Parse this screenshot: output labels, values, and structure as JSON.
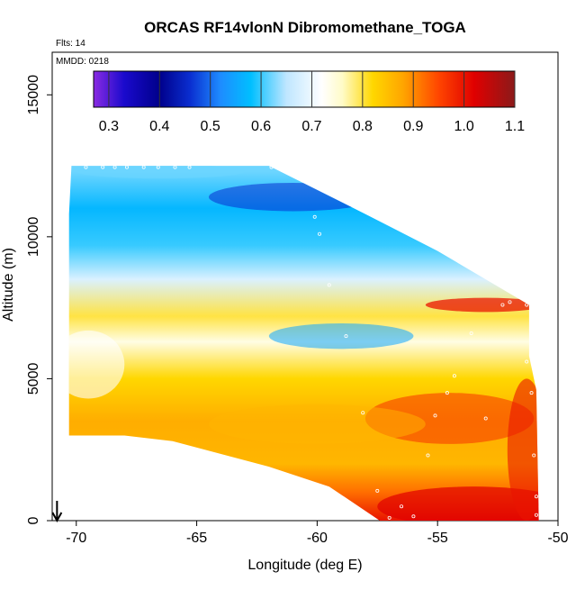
{
  "chart_data": {
    "type": "heatmap",
    "title": "ORCAS RF14vlonN Dibromomethane_TOGA",
    "xlabel": "Longitude (deg E)",
    "ylabel": "Altitude (m)",
    "xlim": [
      -71,
      -50
    ],
    "ylim": [
      0,
      16500
    ],
    "x_ticks": [
      -70,
      -65,
      -60,
      -55,
      -50
    ],
    "x_tick_labels": [
      "-70",
      "-65",
      "-60",
      "-55",
      "-50"
    ],
    "y_ticks": [
      0,
      5000,
      10000,
      15000
    ],
    "y_tick_labels": [
      "0",
      "5000",
      "10000",
      "15000"
    ],
    "flights_note": "Flts: 14",
    "date_note": "MMDD: 0218",
    "colorbar": {
      "min": 0.27,
      "max": 1.1,
      "ticks": [
        0.3,
        0.4,
        0.5,
        0.6,
        0.7,
        0.8,
        0.9,
        1.0,
        1.1
      ],
      "tick_labels": [
        "0.3",
        "0.4",
        "0.5",
        "0.6",
        "0.7",
        "0.8",
        "0.9",
        "1.0",
        "1.1"
      ],
      "stops": [
        {
          "value": 0.27,
          "color": "#8a2be2"
        },
        {
          "value": 0.33,
          "color": "#1a0acd"
        },
        {
          "value": 0.4,
          "color": "#00008b"
        },
        {
          "value": 0.46,
          "color": "#0a2ed0"
        },
        {
          "value": 0.52,
          "color": "#1e8cff"
        },
        {
          "value": 0.58,
          "color": "#00bfff"
        },
        {
          "value": 0.65,
          "color": "#bfe6ff"
        },
        {
          "value": 0.72,
          "color": "#ffffff"
        },
        {
          "value": 0.76,
          "color": "#fffbc8"
        },
        {
          "value": 0.82,
          "color": "#ffd700"
        },
        {
          "value": 0.88,
          "color": "#ffa500"
        },
        {
          "value": 0.95,
          "color": "#ff4500"
        },
        {
          "value": 1.02,
          "color": "#e00000"
        },
        {
          "value": 1.1,
          "color": "#8b1a1a"
        }
      ]
    },
    "field_profile": [
      {
        "alt": 0,
        "value": 1.0
      },
      {
        "alt": 1000,
        "value": 0.92
      },
      {
        "alt": 2000,
        "value": 0.86
      },
      {
        "alt": 3500,
        "value": 0.87
      },
      {
        "alt": 5000,
        "value": 0.82
      },
      {
        "alt": 6300,
        "value": 0.74
      },
      {
        "alt": 7200,
        "value": 0.8
      },
      {
        "alt": 8500,
        "value": 0.68
      },
      {
        "alt": 9700,
        "value": 0.6
      },
      {
        "alt": 11000,
        "value": 0.57
      },
      {
        "alt": 12300,
        "value": 0.62
      }
    ],
    "domain_outline": [
      [
        -70.2,
        12500
      ],
      [
        -62,
        12500
      ],
      [
        -58,
        10800
      ],
      [
        -55,
        9500
      ],
      [
        -51.2,
        7600
      ],
      [
        -51.2,
        5800
      ],
      [
        -50.9,
        4600
      ],
      [
        -50.8,
        0
      ],
      [
        -57.4,
        0
      ],
      [
        -59.5,
        1200
      ],
      [
        -62,
        1900
      ],
      [
        -66,
        2800
      ],
      [
        -68,
        3000
      ],
      [
        -70.3,
        3000
      ],
      [
        -70.3,
        7000
      ],
      [
        -70.3,
        10800
      ]
    ],
    "sample_points": [
      {
        "lon": -69.6,
        "alt": 12450
      },
      {
        "lon": -68.9,
        "alt": 12450
      },
      {
        "lon": -68.4,
        "alt": 12450
      },
      {
        "lon": -67.9,
        "alt": 12450
      },
      {
        "lon": -67.2,
        "alt": 12450
      },
      {
        "lon": -66.6,
        "alt": 12450
      },
      {
        "lon": -65.9,
        "alt": 12450
      },
      {
        "lon": -65.3,
        "alt": 12450
      },
      {
        "lon": -61.9,
        "alt": 12450
      },
      {
        "lon": -61.4,
        "alt": 12450
      },
      {
        "lon": -61.0,
        "alt": 12400
      },
      {
        "lon": -60.5,
        "alt": 12350
      },
      {
        "lon": -60.1,
        "alt": 10700
      },
      {
        "lon": -59.9,
        "alt": 10100
      },
      {
        "lon": -59.5,
        "alt": 8300
      },
      {
        "lon": -58.8,
        "alt": 6500
      },
      {
        "lon": -58.1,
        "alt": 3800
      },
      {
        "lon": -57.5,
        "alt": 1050
      },
      {
        "lon": -56.5,
        "alt": 500
      },
      {
        "lon": -56.0,
        "alt": 150
      },
      {
        "lon": -55.4,
        "alt": 2300
      },
      {
        "lon": -55.1,
        "alt": 3700
      },
      {
        "lon": -54.6,
        "alt": 4500
      },
      {
        "lon": -54.3,
        "alt": 5100
      },
      {
        "lon": -53.6,
        "alt": 6600
      },
      {
        "lon": -52.3,
        "alt": 7600
      },
      {
        "lon": -52.0,
        "alt": 7700
      },
      {
        "lon": -51.3,
        "alt": 7600
      },
      {
        "lon": -51.3,
        "alt": 5600
      },
      {
        "lon": -51.1,
        "alt": 4500
      },
      {
        "lon": -51.0,
        "alt": 2300
      },
      {
        "lon": -50.9,
        "alt": 850
      },
      {
        "lon": -50.9,
        "alt": 200
      },
      {
        "lon": -57.0,
        "alt": 100
      },
      {
        "lon": -53.0,
        "alt": 3600
      }
    ],
    "arrow_marker": {
      "lon": -70.8,
      "label": "down-arrow"
    }
  }
}
